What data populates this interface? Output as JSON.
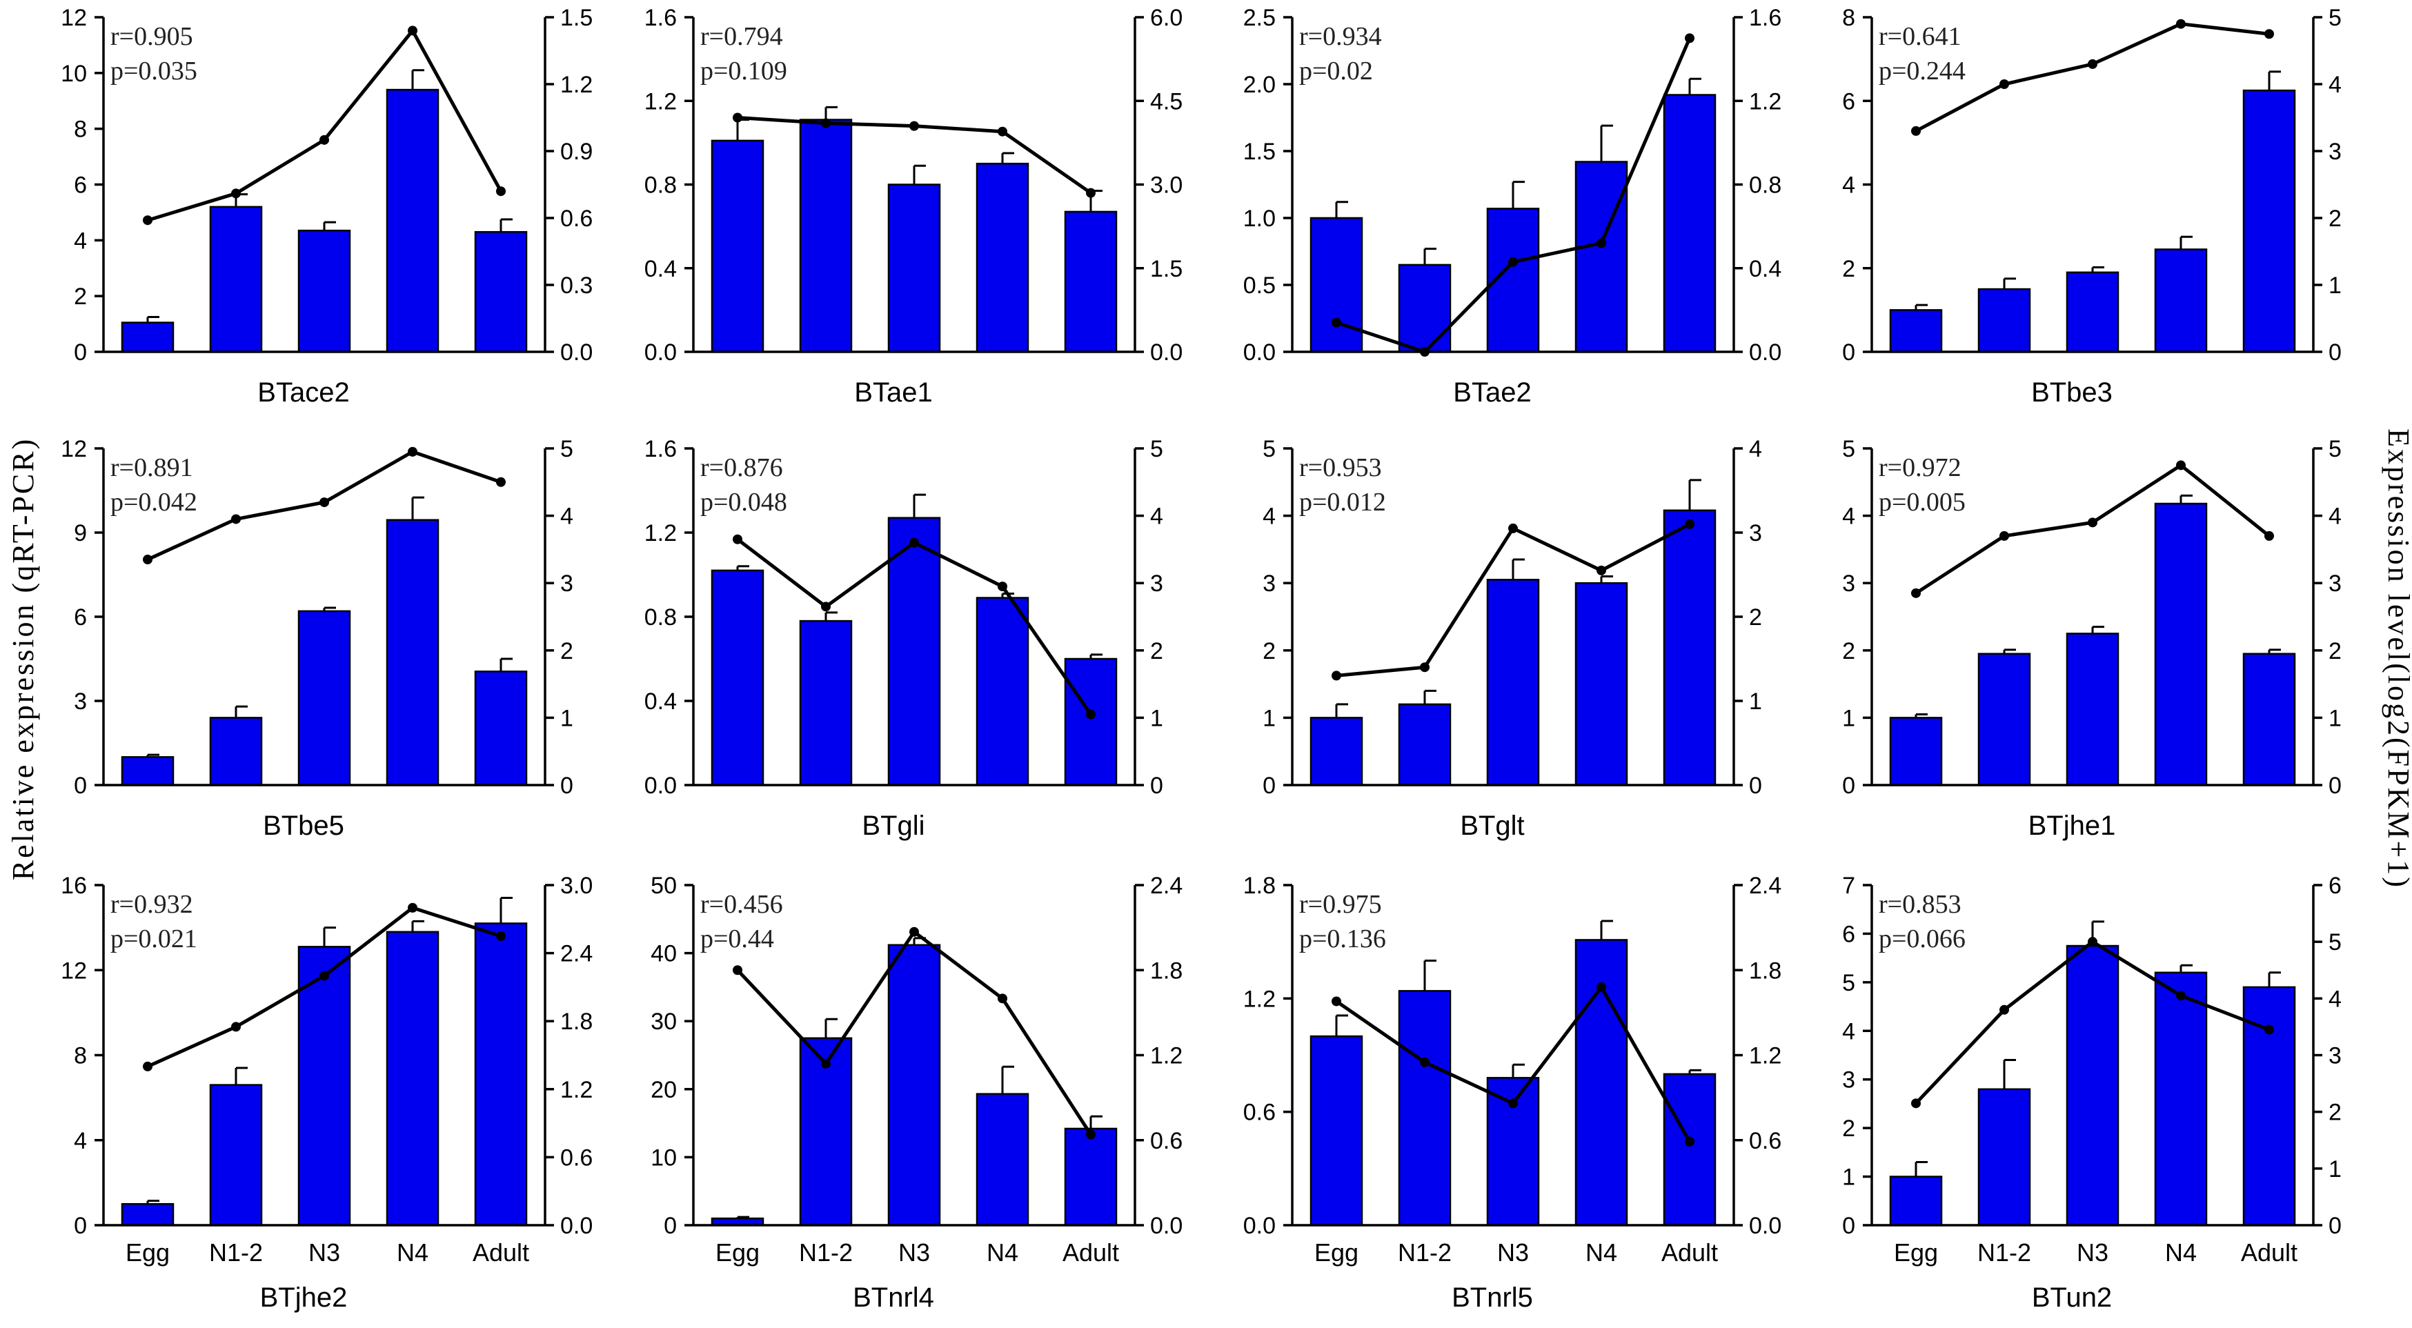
{
  "left_axis_title": "Relative expression (qRT-PCR)",
  "right_axis_title": "Expression level(log2(FPKM+1)",
  "colors": {
    "bar": "#0000ee",
    "line": "#000000"
  },
  "chart_data": [
    {
      "type": "bar+line",
      "title": "BTace2",
      "stats": {
        "r": "r=0.905",
        "p": "p=0.035"
      },
      "categories": [
        "Egg",
        "N1-2",
        "N3",
        "N4",
        "Adult"
      ],
      "show_categories": false,
      "left_axis": {
        "ylim": [
          0,
          12
        ],
        "ticks": [
          "0",
          "2",
          "4",
          "6",
          "8",
          "10",
          "12"
        ]
      },
      "right_axis": {
        "ylim": [
          0,
          1.5
        ],
        "ticks": [
          "0.0",
          "0.3",
          "0.6",
          "0.9",
          "1.2",
          "1.5"
        ]
      },
      "bars": {
        "name": "qRT-PCR",
        "values": [
          1.05,
          5.2,
          4.35,
          9.4,
          4.3
        ],
        "errors": [
          0.2,
          0.45,
          0.3,
          0.7,
          0.45
        ]
      },
      "line": {
        "name": "FPKM",
        "values": [
          0.59,
          0.71,
          0.95,
          1.44,
          0.72
        ]
      }
    },
    {
      "type": "bar+line",
      "title": "BTae1",
      "stats": {
        "r": "r=0.794",
        "p": "p=0.109"
      },
      "categories": [
        "Egg",
        "N1-2",
        "N3",
        "N4",
        "Adult"
      ],
      "show_categories": false,
      "left_axis": {
        "ylim": [
          0,
          1.6
        ],
        "ticks": [
          "0.0",
          "0.4",
          "0.8",
          "1.2",
          "1.6"
        ]
      },
      "right_axis": {
        "ylim": [
          0,
          6
        ],
        "ticks": [
          "0.0",
          "1.5",
          "3.0",
          "4.5",
          "6.0"
        ]
      },
      "bars": {
        "name": "qRT-PCR",
        "values": [
          1.01,
          1.11,
          0.8,
          0.9,
          0.67
        ],
        "errors": [
          0.1,
          0.06,
          0.09,
          0.05,
          0.1
        ]
      },
      "line": {
        "name": "FPKM",
        "values": [
          4.2,
          4.1,
          4.05,
          3.95,
          2.85
        ]
      }
    },
    {
      "type": "bar+line",
      "title": "BTae2",
      "stats": {
        "r": "r=0.934",
        "p": "p=0.02"
      },
      "categories": [
        "Egg",
        "N1-2",
        "N3",
        "N4",
        "Adult"
      ],
      "show_categories": false,
      "left_axis": {
        "ylim": [
          0,
          2.5
        ],
        "ticks": [
          "0.0",
          "0.5",
          "1.0",
          "1.5",
          "2.0",
          "2.5"
        ]
      },
      "right_axis": {
        "ylim": [
          0,
          1.6
        ],
        "ticks": [
          "0.0",
          "0.4",
          "0.8",
          "1.2",
          "1.6"
        ]
      },
      "bars": {
        "name": "qRT-PCR",
        "values": [
          1.0,
          0.65,
          1.07,
          1.42,
          1.92
        ],
        "errors": [
          0.12,
          0.12,
          0.2,
          0.27,
          0.12
        ]
      },
      "line": {
        "name": "FPKM",
        "values": [
          0.14,
          0.0,
          0.43,
          0.52,
          1.5
        ]
      }
    },
    {
      "type": "bar+line",
      "title": "BTbe3",
      "stats": {
        "r": "r=0.641",
        "p": "p=0.244"
      },
      "categories": [
        "Egg",
        "N1-2",
        "N3",
        "N4",
        "Adult"
      ],
      "show_categories": false,
      "left_axis": {
        "ylim": [
          0,
          8
        ],
        "ticks": [
          "0",
          "2",
          "4",
          "6",
          "8"
        ]
      },
      "right_axis": {
        "ylim": [
          0,
          5
        ],
        "ticks": [
          "0",
          "1",
          "2",
          "3",
          "4",
          "5"
        ]
      },
      "bars": {
        "name": "qRT-PCR",
        "values": [
          1.0,
          1.5,
          1.9,
          2.45,
          6.25
        ],
        "errors": [
          0.12,
          0.25,
          0.12,
          0.3,
          0.45
        ]
      },
      "line": {
        "name": "FPKM",
        "values": [
          3.3,
          4.0,
          4.3,
          4.9,
          4.75
        ]
      }
    },
    {
      "type": "bar+line",
      "title": "BTbe5",
      "stats": {
        "r": "r=0.891",
        "p": "p=0.042"
      },
      "categories": [
        "Egg",
        "N1-2",
        "N3",
        "N4",
        "Adult"
      ],
      "show_categories": false,
      "left_axis": {
        "ylim": [
          0,
          12
        ],
        "ticks": [
          "0",
          "3",
          "6",
          "9",
          "12"
        ]
      },
      "right_axis": {
        "ylim": [
          0,
          5
        ],
        "ticks": [
          "0",
          "1",
          "2",
          "3",
          "4",
          "5"
        ]
      },
      "bars": {
        "name": "qRT-PCR",
        "values": [
          1.0,
          2.4,
          6.2,
          9.45,
          4.05
        ],
        "errors": [
          0.08,
          0.4,
          0.12,
          0.8,
          0.45
        ]
      },
      "line": {
        "name": "FPKM",
        "values": [
          3.35,
          3.95,
          4.2,
          4.95,
          4.5
        ]
      }
    },
    {
      "type": "bar+line",
      "title": "BTgli",
      "stats": {
        "r": "r=0.876",
        "p": "p=0.048"
      },
      "categories": [
        "Egg",
        "N1-2",
        "N3",
        "N4",
        "Adult"
      ],
      "show_categories": false,
      "left_axis": {
        "ylim": [
          0,
          1.6
        ],
        "ticks": [
          "0.0",
          "0.4",
          "0.8",
          "1.2",
          "1.6"
        ]
      },
      "right_axis": {
        "ylim": [
          0,
          5
        ],
        "ticks": [
          "0",
          "1",
          "2",
          "3",
          "4",
          "5"
        ]
      },
      "bars": {
        "name": "qRT-PCR",
        "values": [
          1.02,
          0.78,
          1.27,
          0.89,
          0.6
        ],
        "errors": [
          0.02,
          0.04,
          0.11,
          0.02,
          0.02
        ]
      },
      "line": {
        "name": "FPKM",
        "values": [
          3.65,
          2.65,
          3.6,
          2.95,
          1.05
        ]
      }
    },
    {
      "type": "bar+line",
      "title": "BTglt",
      "stats": {
        "r": "r=0.953",
        "p": "p=0.012"
      },
      "categories": [
        "Egg",
        "N1-2",
        "N3",
        "N4",
        "Adult"
      ],
      "show_categories": false,
      "left_axis": {
        "ylim": [
          0,
          5
        ],
        "ticks": [
          "0",
          "1",
          "2",
          "3",
          "4",
          "5"
        ]
      },
      "right_axis": {
        "ylim": [
          0,
          4
        ],
        "ticks": [
          "0",
          "1",
          "2",
          "3",
          "4"
        ]
      },
      "bars": {
        "name": "qRT-PCR",
        "values": [
          1.0,
          1.2,
          3.05,
          3.0,
          4.08
        ],
        "errors": [
          0.2,
          0.2,
          0.3,
          0.1,
          0.45
        ]
      },
      "line": {
        "name": "FPKM",
        "values": [
          1.3,
          1.4,
          3.05,
          2.55,
          3.1
        ]
      }
    },
    {
      "type": "bar+line",
      "title": "BTjhe1",
      "stats": {
        "r": "r=0.972",
        "p": "p=0.005"
      },
      "categories": [
        "Egg",
        "N1-2",
        "N3",
        "N4",
        "Adult"
      ],
      "show_categories": false,
      "left_axis": {
        "ylim": [
          0,
          5
        ],
        "ticks": [
          "0",
          "1",
          "2",
          "3",
          "4",
          "5"
        ]
      },
      "right_axis": {
        "ylim": [
          0,
          5
        ],
        "ticks": [
          "0",
          "1",
          "2",
          "3",
          "4",
          "5"
        ]
      },
      "bars": {
        "name": "qRT-PCR",
        "values": [
          1.0,
          1.95,
          2.25,
          4.18,
          1.95
        ],
        "errors": [
          0.05,
          0.06,
          0.1,
          0.12,
          0.06
        ]
      },
      "line": {
        "name": "FPKM",
        "values": [
          2.85,
          3.7,
          3.9,
          4.75,
          3.7
        ]
      }
    },
    {
      "type": "bar+line",
      "title": "BTjhe2",
      "stats": {
        "r": "r=0.932",
        "p": "p=0.021"
      },
      "categories": [
        "Egg",
        "N1-2",
        "N3",
        "N4",
        "Adult"
      ],
      "show_categories": true,
      "left_axis": {
        "ylim": [
          0,
          16
        ],
        "ticks": [
          "0",
          "4",
          "8",
          "12",
          "16"
        ]
      },
      "right_axis": {
        "ylim": [
          0,
          3
        ],
        "ticks": [
          "0.0",
          "0.6",
          "1.2",
          "1.8",
          "2.4",
          "3.0"
        ]
      },
      "bars": {
        "name": "qRT-PCR",
        "values": [
          1.0,
          6.6,
          13.1,
          13.8,
          14.2
        ],
        "errors": [
          0.15,
          0.8,
          0.9,
          0.5,
          1.2
        ]
      },
      "line": {
        "name": "FPKM",
        "values": [
          1.4,
          1.75,
          2.2,
          2.8,
          2.55
        ]
      }
    },
    {
      "type": "bar+line",
      "title": "BTnrl4",
      "stats": {
        "r": "r=0.456",
        "p": "p=0.44"
      },
      "categories": [
        "Egg",
        "N1-2",
        "N3",
        "N4",
        "Adult"
      ],
      "show_categories": true,
      "left_axis": {
        "ylim": [
          0,
          50
        ],
        "ticks": [
          "0",
          "10",
          "20",
          "30",
          "40",
          "50"
        ]
      },
      "right_axis": {
        "ylim": [
          0,
          2.4
        ],
        "ticks": [
          "0.0",
          "0.6",
          "1.2",
          "1.8",
          "2.4"
        ]
      },
      "bars": {
        "name": "qRT-PCR",
        "values": [
          1.0,
          27.5,
          41.2,
          19.3,
          14.2
        ],
        "errors": [
          0.2,
          2.8,
          1.0,
          4.0,
          1.8
        ]
      },
      "line": {
        "name": "FPKM",
        "values": [
          1.8,
          1.14,
          2.07,
          1.6,
          0.64
        ]
      }
    },
    {
      "type": "bar+line",
      "title": "BTnrl5",
      "stats": {
        "r": "r=0.975",
        "p": "p=0.136"
      },
      "categories": [
        "Egg",
        "N1-2",
        "N3",
        "N4",
        "Adult"
      ],
      "show_categories": true,
      "left_axis": {
        "ylim": [
          0,
          1.8
        ],
        "ticks": [
          "0.0",
          "0.6",
          "1.2",
          "1.8"
        ]
      },
      "right_axis": {
        "ylim": [
          0,
          2.4
        ],
        "ticks": [
          "0.0",
          "0.6",
          "1.2",
          "1.8",
          "2.4"
        ]
      },
      "bars": {
        "name": "qRT-PCR",
        "values": [
          1.0,
          1.24,
          0.78,
          1.51,
          0.8
        ],
        "errors": [
          0.11,
          0.16,
          0.07,
          0.1,
          0.02
        ]
      },
      "line": {
        "name": "FPKM",
        "values": [
          1.58,
          1.15,
          0.86,
          1.68,
          0.59
        ]
      }
    },
    {
      "type": "bar+line",
      "title": "BTun2",
      "stats": {
        "r": "r=0.853",
        "p": "p=0.066"
      },
      "categories": [
        "Egg",
        "N1-2",
        "N3",
        "N4",
        "Adult"
      ],
      "show_categories": true,
      "left_axis": {
        "ylim": [
          0,
          7
        ],
        "ticks": [
          "0",
          "1",
          "2",
          "3",
          "4",
          "5",
          "6",
          "7"
        ]
      },
      "right_axis": {
        "ylim": [
          0,
          6
        ],
        "ticks": [
          "0",
          "1",
          "2",
          "3",
          "4",
          "5",
          "6"
        ]
      },
      "bars": {
        "name": "qRT-PCR",
        "values": [
          1.0,
          2.8,
          5.75,
          5.2,
          4.9
        ],
        "errors": [
          0.3,
          0.6,
          0.5,
          0.15,
          0.3
        ]
      },
      "line": {
        "name": "FPKM",
        "values": [
          2.15,
          3.8,
          5.0,
          4.05,
          3.45
        ]
      }
    }
  ]
}
